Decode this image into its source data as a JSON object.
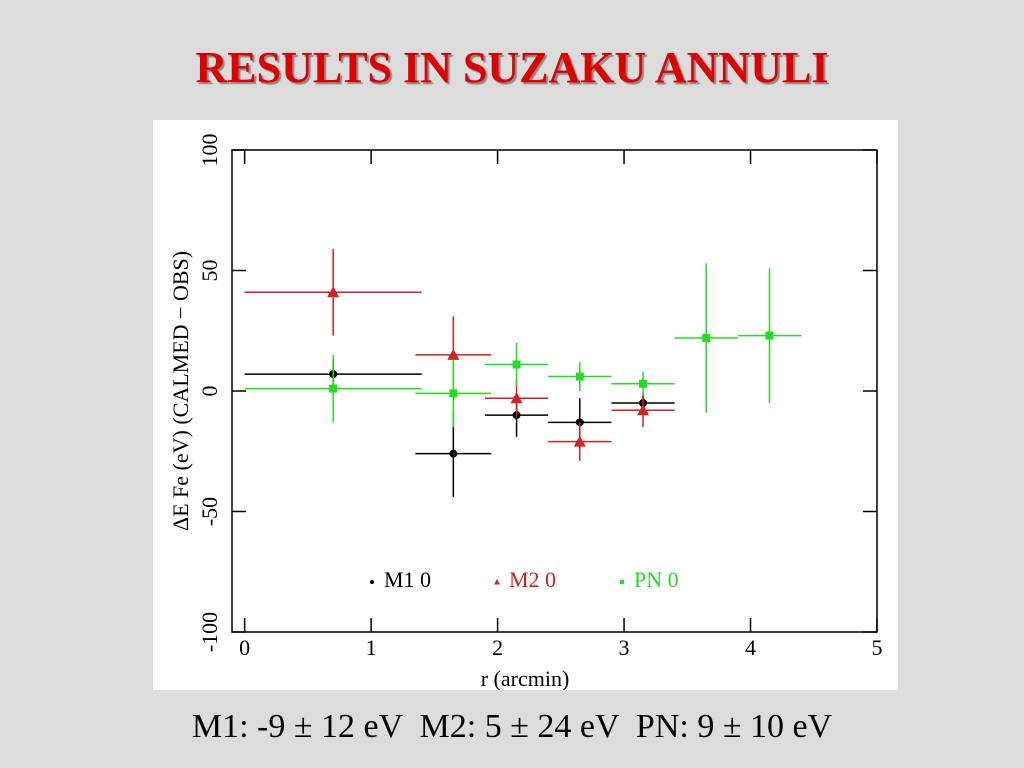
{
  "chart_data": {
    "type": "errorbar",
    "title": "RESULTS IN SUZAKU ANNULI",
    "caption": "M1: -9 ± 12 eV  M2: 5 ± 24 eV  PN: 9 ± 10 eV",
    "x_label": "r (arcmin)",
    "y_label": "ΔE Fe (eV) (CALMED − OBS)",
    "xlim": [
      -0.1,
      5
    ],
    "xticks": [
      0,
      1,
      2,
      3,
      4,
      5
    ],
    "ylim": [
      -100,
      100
    ],
    "yticks": [
      -100,
      -50,
      0,
      50,
      100
    ],
    "legend": "bottom",
    "series": [
      {
        "name": "M1 0",
        "color": "#000000",
        "marker": "circle",
        "x": [
          0.7,
          1.65,
          2.15,
          2.65,
          3.15
        ],
        "x_err": [
          0.7,
          0.3,
          0.25,
          0.25,
          0.25
        ],
        "values": [
          7,
          -26,
          -10,
          -13,
          -5
        ],
        "errors": [
          6,
          18,
          9,
          10,
          3
        ]
      },
      {
        "name": "M2 0",
        "color": "#d42020",
        "marker": "triangle",
        "x": [
          0.7,
          1.65,
          2.15,
          2.65,
          3.15
        ],
        "x_err": [
          0.7,
          0.3,
          0.25,
          0.25,
          0.25
        ],
        "values": [
          41,
          15,
          -3,
          -21,
          -8
        ],
        "errors": [
          18,
          16,
          8,
          8,
          7
        ]
      },
      {
        "name": "PN 0",
        "color": "#22dd22",
        "marker": "square",
        "x": [
          0.7,
          1.65,
          2.15,
          2.65,
          3.15,
          3.65,
          4.15
        ],
        "x_err": [
          0.7,
          0.3,
          0.25,
          0.25,
          0.25,
          0.25,
          0.25
        ],
        "values": [
          1,
          -1,
          11,
          6,
          3,
          22,
          23
        ],
        "errors": [
          14,
          14,
          9,
          6,
          5,
          31,
          28
        ]
      }
    ]
  }
}
